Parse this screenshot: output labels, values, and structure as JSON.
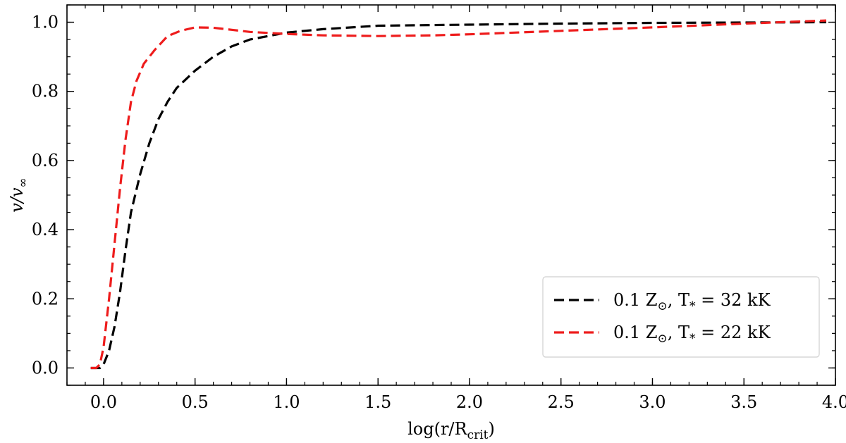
{
  "chart_data": {
    "type": "line",
    "xlabel": "log(r/R_crit)",
    "ylabel": "v/v_∞",
    "xlim": [
      -0.2,
      4.0
    ],
    "ylim": [
      -0.05,
      1.05
    ],
    "xticks": [
      0.0,
      0.5,
      1.0,
      1.5,
      2.0,
      2.5,
      3.0,
      3.5,
      4.0
    ],
    "xtick_labels": [
      "0.0",
      "0.5",
      "1.0",
      "1.5",
      "2.0",
      "2.5",
      "3.0",
      "3.5",
      "4.0"
    ],
    "yticks": [
      0.0,
      0.2,
      0.4,
      0.6,
      0.8,
      1.0
    ],
    "ytick_labels": [
      "0.0",
      "0.2",
      "0.4",
      "0.6",
      "0.8",
      "1.0"
    ],
    "x_minor_step": 0.1,
    "y_minor_step": 0.05,
    "grid": false,
    "legend_position": "lower-right",
    "series": [
      {
        "name": "0.1 Z_⊙, T_* = 32 kK",
        "color": "#000000",
        "linestyle": "dashed",
        "points": [
          [
            -0.07,
            0.0
          ],
          [
            -0.02,
            0.0
          ],
          [
            0.0,
            0.01
          ],
          [
            0.03,
            0.05
          ],
          [
            0.06,
            0.12
          ],
          [
            0.09,
            0.22
          ],
          [
            0.12,
            0.34
          ],
          [
            0.15,
            0.45
          ],
          [
            0.2,
            0.56
          ],
          [
            0.25,
            0.65
          ],
          [
            0.3,
            0.72
          ],
          [
            0.35,
            0.77
          ],
          [
            0.4,
            0.81
          ],
          [
            0.5,
            0.86
          ],
          [
            0.6,
            0.9
          ],
          [
            0.7,
            0.93
          ],
          [
            0.8,
            0.95
          ],
          [
            0.9,
            0.96
          ],
          [
            1.0,
            0.97
          ],
          [
            1.2,
            0.98
          ],
          [
            1.5,
            0.99
          ],
          [
            2.0,
            0.993
          ],
          [
            2.5,
            0.996
          ],
          [
            3.0,
            0.998
          ],
          [
            3.5,
            0.999
          ],
          [
            3.95,
            1.0
          ]
        ]
      },
      {
        "name": "0.1 Z_⊙, T_* = 22 kK",
        "color": "#ee1c1c",
        "linestyle": "dashed",
        "points": [
          [
            -0.07,
            0.0
          ],
          [
            -0.04,
            0.0
          ],
          [
            -0.02,
            0.01
          ],
          [
            0.0,
            0.06
          ],
          [
            0.03,
            0.2
          ],
          [
            0.06,
            0.36
          ],
          [
            0.09,
            0.52
          ],
          [
            0.12,
            0.66
          ],
          [
            0.15,
            0.77
          ],
          [
            0.18,
            0.83
          ],
          [
            0.22,
            0.88
          ],
          [
            0.28,
            0.92
          ],
          [
            0.35,
            0.96
          ],
          [
            0.42,
            0.975
          ],
          [
            0.5,
            0.985
          ],
          [
            0.6,
            0.984
          ],
          [
            0.7,
            0.978
          ],
          [
            0.8,
            0.972
          ],
          [
            1.0,
            0.966
          ],
          [
            1.2,
            0.962
          ],
          [
            1.5,
            0.96
          ],
          [
            1.8,
            0.962
          ],
          [
            2.0,
            0.965
          ],
          [
            2.5,
            0.975
          ],
          [
            3.0,
            0.985
          ],
          [
            3.5,
            0.996
          ],
          [
            3.95,
            1.005
          ]
        ]
      }
    ]
  }
}
